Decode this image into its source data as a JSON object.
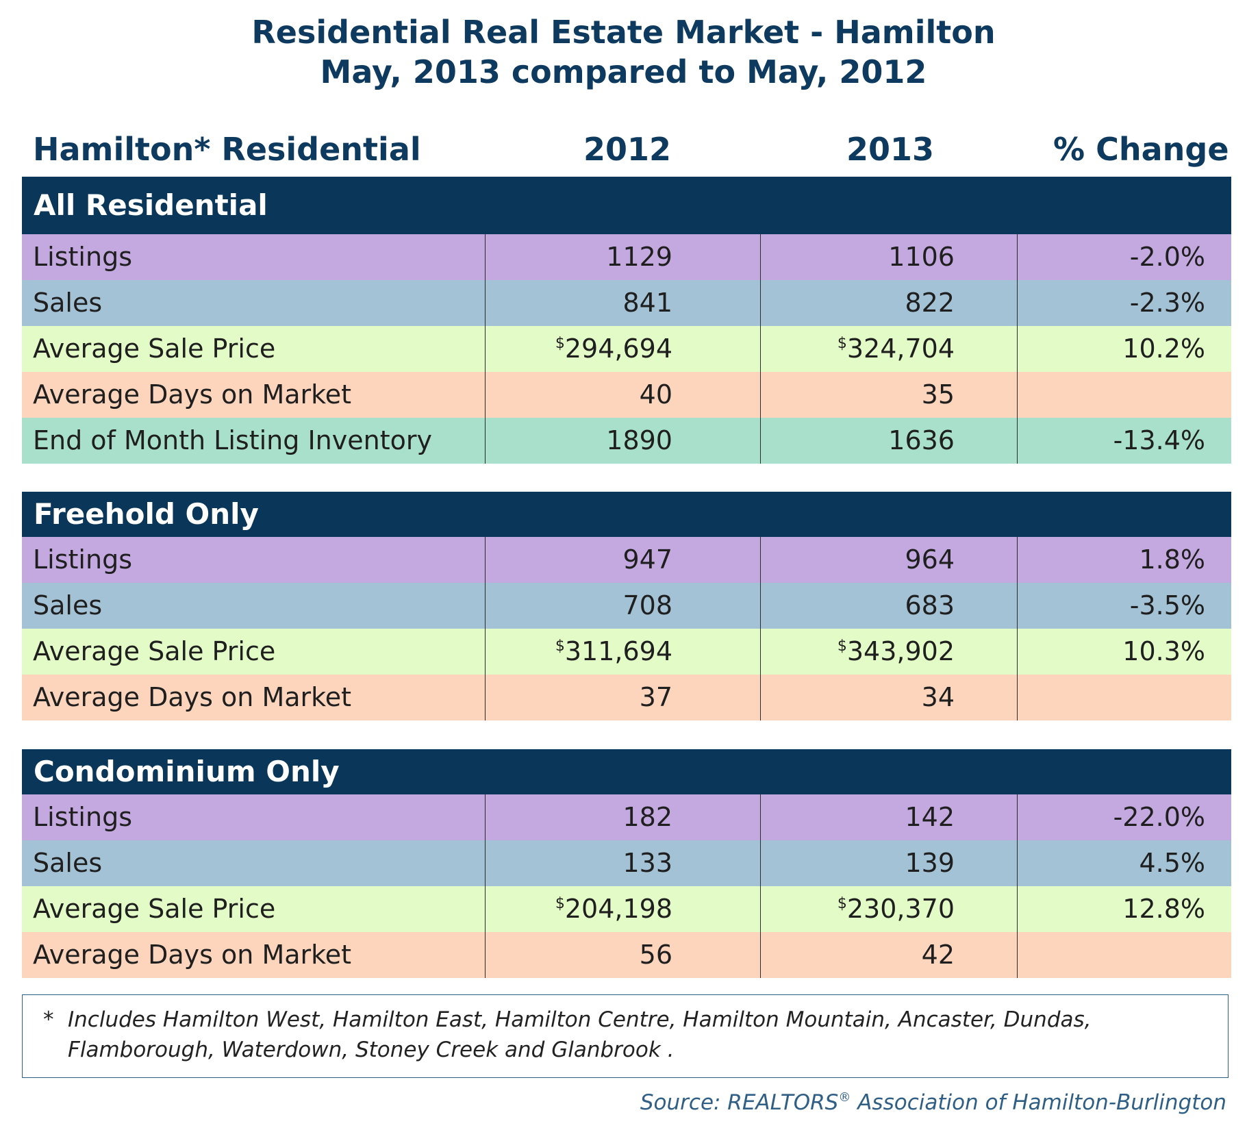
{
  "title": {
    "line1": "Residential Real Estate Market - Hamilton",
    "line2": "May, 2013 compared to May, 2012"
  },
  "columns": {
    "label": "Hamilton* Residential",
    "y2012": "2012",
    "y2013": "2013",
    "change": "% Change"
  },
  "sections": [
    {
      "title": "All Residential",
      "rows": [
        {
          "label": "Listings",
          "v2012": "1129",
          "v2013": "1106",
          "change": "-2.0%"
        },
        {
          "label": "Sales",
          "v2012": "841",
          "v2013": "822",
          "change": "-2.3%"
        },
        {
          "label": "Average Sale Price",
          "currency": "$",
          "v2012": "294,694",
          "v2013": "324,704",
          "change": "10.2%"
        },
        {
          "label": "Average Days on Market",
          "v2012": "40",
          "v2013": "35",
          "change": ""
        },
        {
          "label": "End of Month Listing Inventory",
          "v2012": "1890",
          "v2013": "1636",
          "change": "-13.4%"
        }
      ]
    },
    {
      "title": "Freehold Only",
      "rows": [
        {
          "label": "Listings",
          "v2012": "947",
          "v2013": "964",
          "change": "1.8%"
        },
        {
          "label": "Sales",
          "v2012": "708",
          "v2013": "683",
          "change": "-3.5%"
        },
        {
          "label": "Average Sale Price",
          "currency": "$",
          "v2012": "311,694",
          "v2013": "343,902",
          "change": "10.3%"
        },
        {
          "label": "Average Days on Market",
          "v2012": "37",
          "v2013": "34",
          "change": ""
        }
      ]
    },
    {
      "title": "Condominium Only",
      "rows": [
        {
          "label": "Listings",
          "v2012": "182",
          "v2013": "142",
          "change": "-22.0%"
        },
        {
          "label": "Sales",
          "v2012": "133",
          "v2013": "139",
          "change": "4.5%"
        },
        {
          "label": "Average Sale Price",
          "currency": "$",
          "v2012": "204,198",
          "v2013": "230,370",
          "change": "12.8%"
        },
        {
          "label": "Average Days on Market",
          "v2012": "56",
          "v2013": "42",
          "change": ""
        }
      ]
    }
  ],
  "footnote": {
    "marker": "*",
    "text": "Includes Hamilton West, Hamilton East, Hamilton Centre, Hamilton Mountain, Ancaster, Dundas, Flamborough, Waterdown, Stoney Creek and Glanbrook ."
  },
  "source": {
    "prefix": "Source:  REALTORS",
    "mark": "®",
    "suffix": " Association of Hamilton-Burlington"
  },
  "colors": {
    "navy": "#0a3659",
    "listings": "#c3a9e0",
    "sales": "#a3c2d6",
    "price": "#e3fbc6",
    "days_on_market": "#fdd5bd",
    "inventory": "#a8e0cc"
  }
}
